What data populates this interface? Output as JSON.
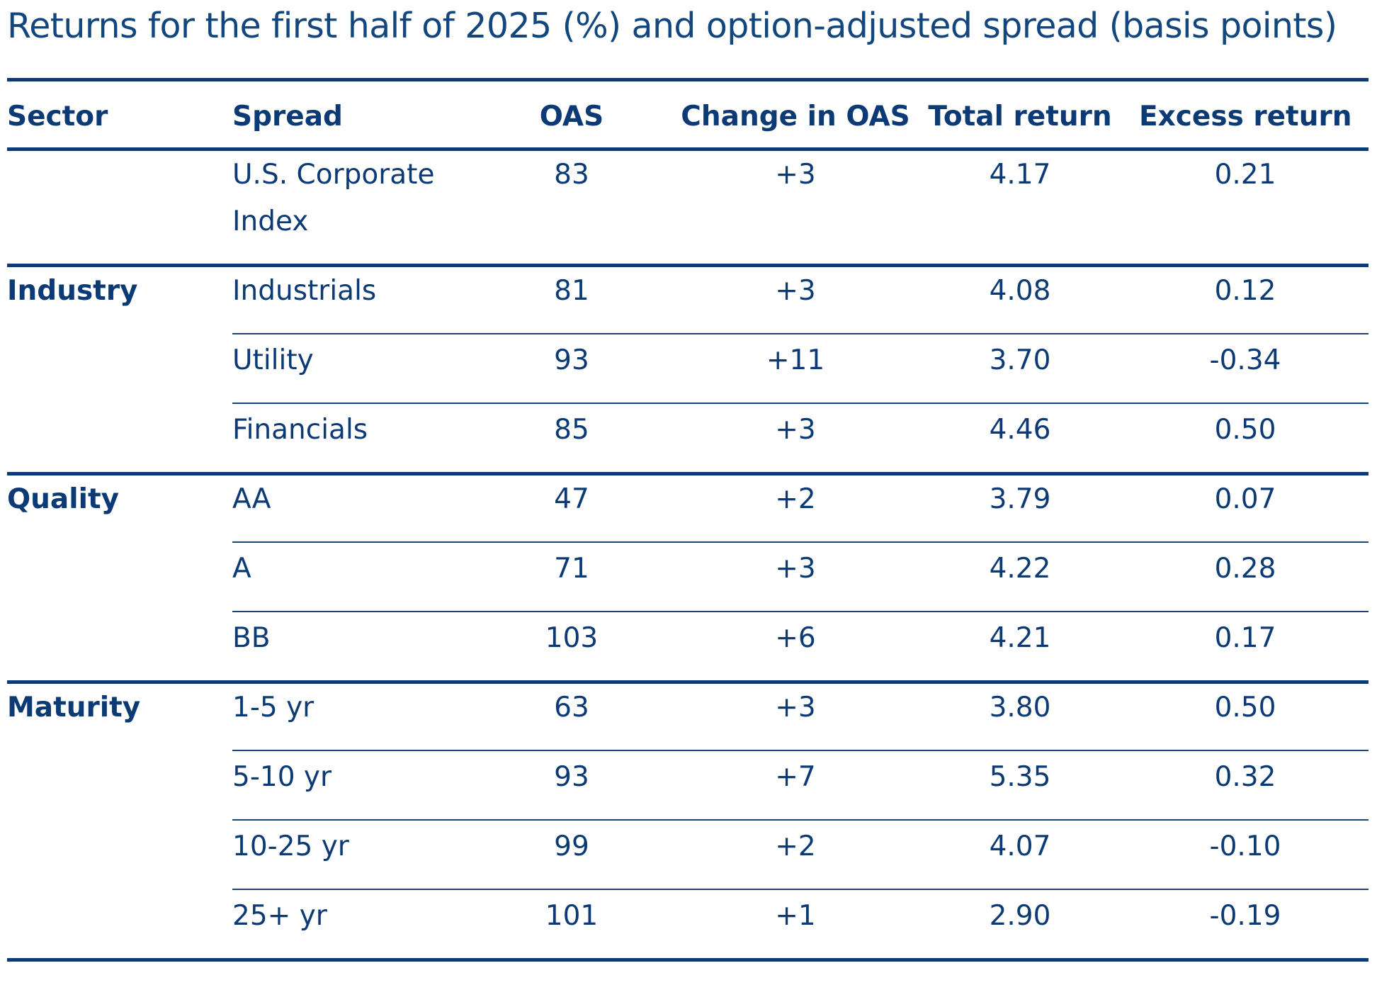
{
  "chart_data": {
    "type": "table",
    "title": "Returns for the first half of 2025 (%) and option-adjusted spread (basis points)",
    "columns": [
      "Sector",
      "Spread",
      "OAS",
      "Change in OAS",
      "Total return",
      "Excess return"
    ],
    "groups": [
      {
        "sector": "",
        "rows": [
          {
            "spread": "U.S. Corporate",
            "spread2": "Index",
            "oas": "83",
            "change": "+3",
            "total": "4.17",
            "excess": "0.21"
          }
        ]
      },
      {
        "sector": "Industry",
        "rows": [
          {
            "spread": "Industrials",
            "oas": "81",
            "change": "+3",
            "total": "4.08",
            "excess": "0.12"
          },
          {
            "spread": "Utility",
            "oas": "93",
            "change": "+11",
            "total": "3.70",
            "excess": "-0.34"
          },
          {
            "spread": "Financials",
            "oas": "85",
            "change": "+3",
            "total": "4.46",
            "excess": "0.50"
          }
        ]
      },
      {
        "sector": "Quality",
        "rows": [
          {
            "spread": "AA",
            "oas": "47",
            "change": "+2",
            "total": "3.79",
            "excess": "0.07"
          },
          {
            "spread": "A",
            "oas": "71",
            "change": "+3",
            "total": "4.22",
            "excess": "0.28"
          },
          {
            "spread": "BB",
            "oas": "103",
            "change": "+6",
            "total": "4.21",
            "excess": "0.17"
          }
        ]
      },
      {
        "sector": "Maturity",
        "rows": [
          {
            "spread": "1-5 yr",
            "oas": "63",
            "change": "+3",
            "total": "3.80",
            "excess": "0.50"
          },
          {
            "spread": "5-10 yr",
            "oas": "93",
            "change": "+7",
            "total": "5.35",
            "excess": "0.32"
          },
          {
            "spread": "10-25 yr",
            "oas": "99",
            "change": "+2",
            "total": "4.07",
            "excess": "-0.10"
          },
          {
            "spread": "25+ yr",
            "oas": "101",
            "change": "+1",
            "total": "2.90",
            "excess": "-0.19"
          }
        ]
      }
    ]
  },
  "colors": {
    "text": "#0b3a75",
    "rule": "#0b3a75",
    "background": "#ffffff"
  }
}
